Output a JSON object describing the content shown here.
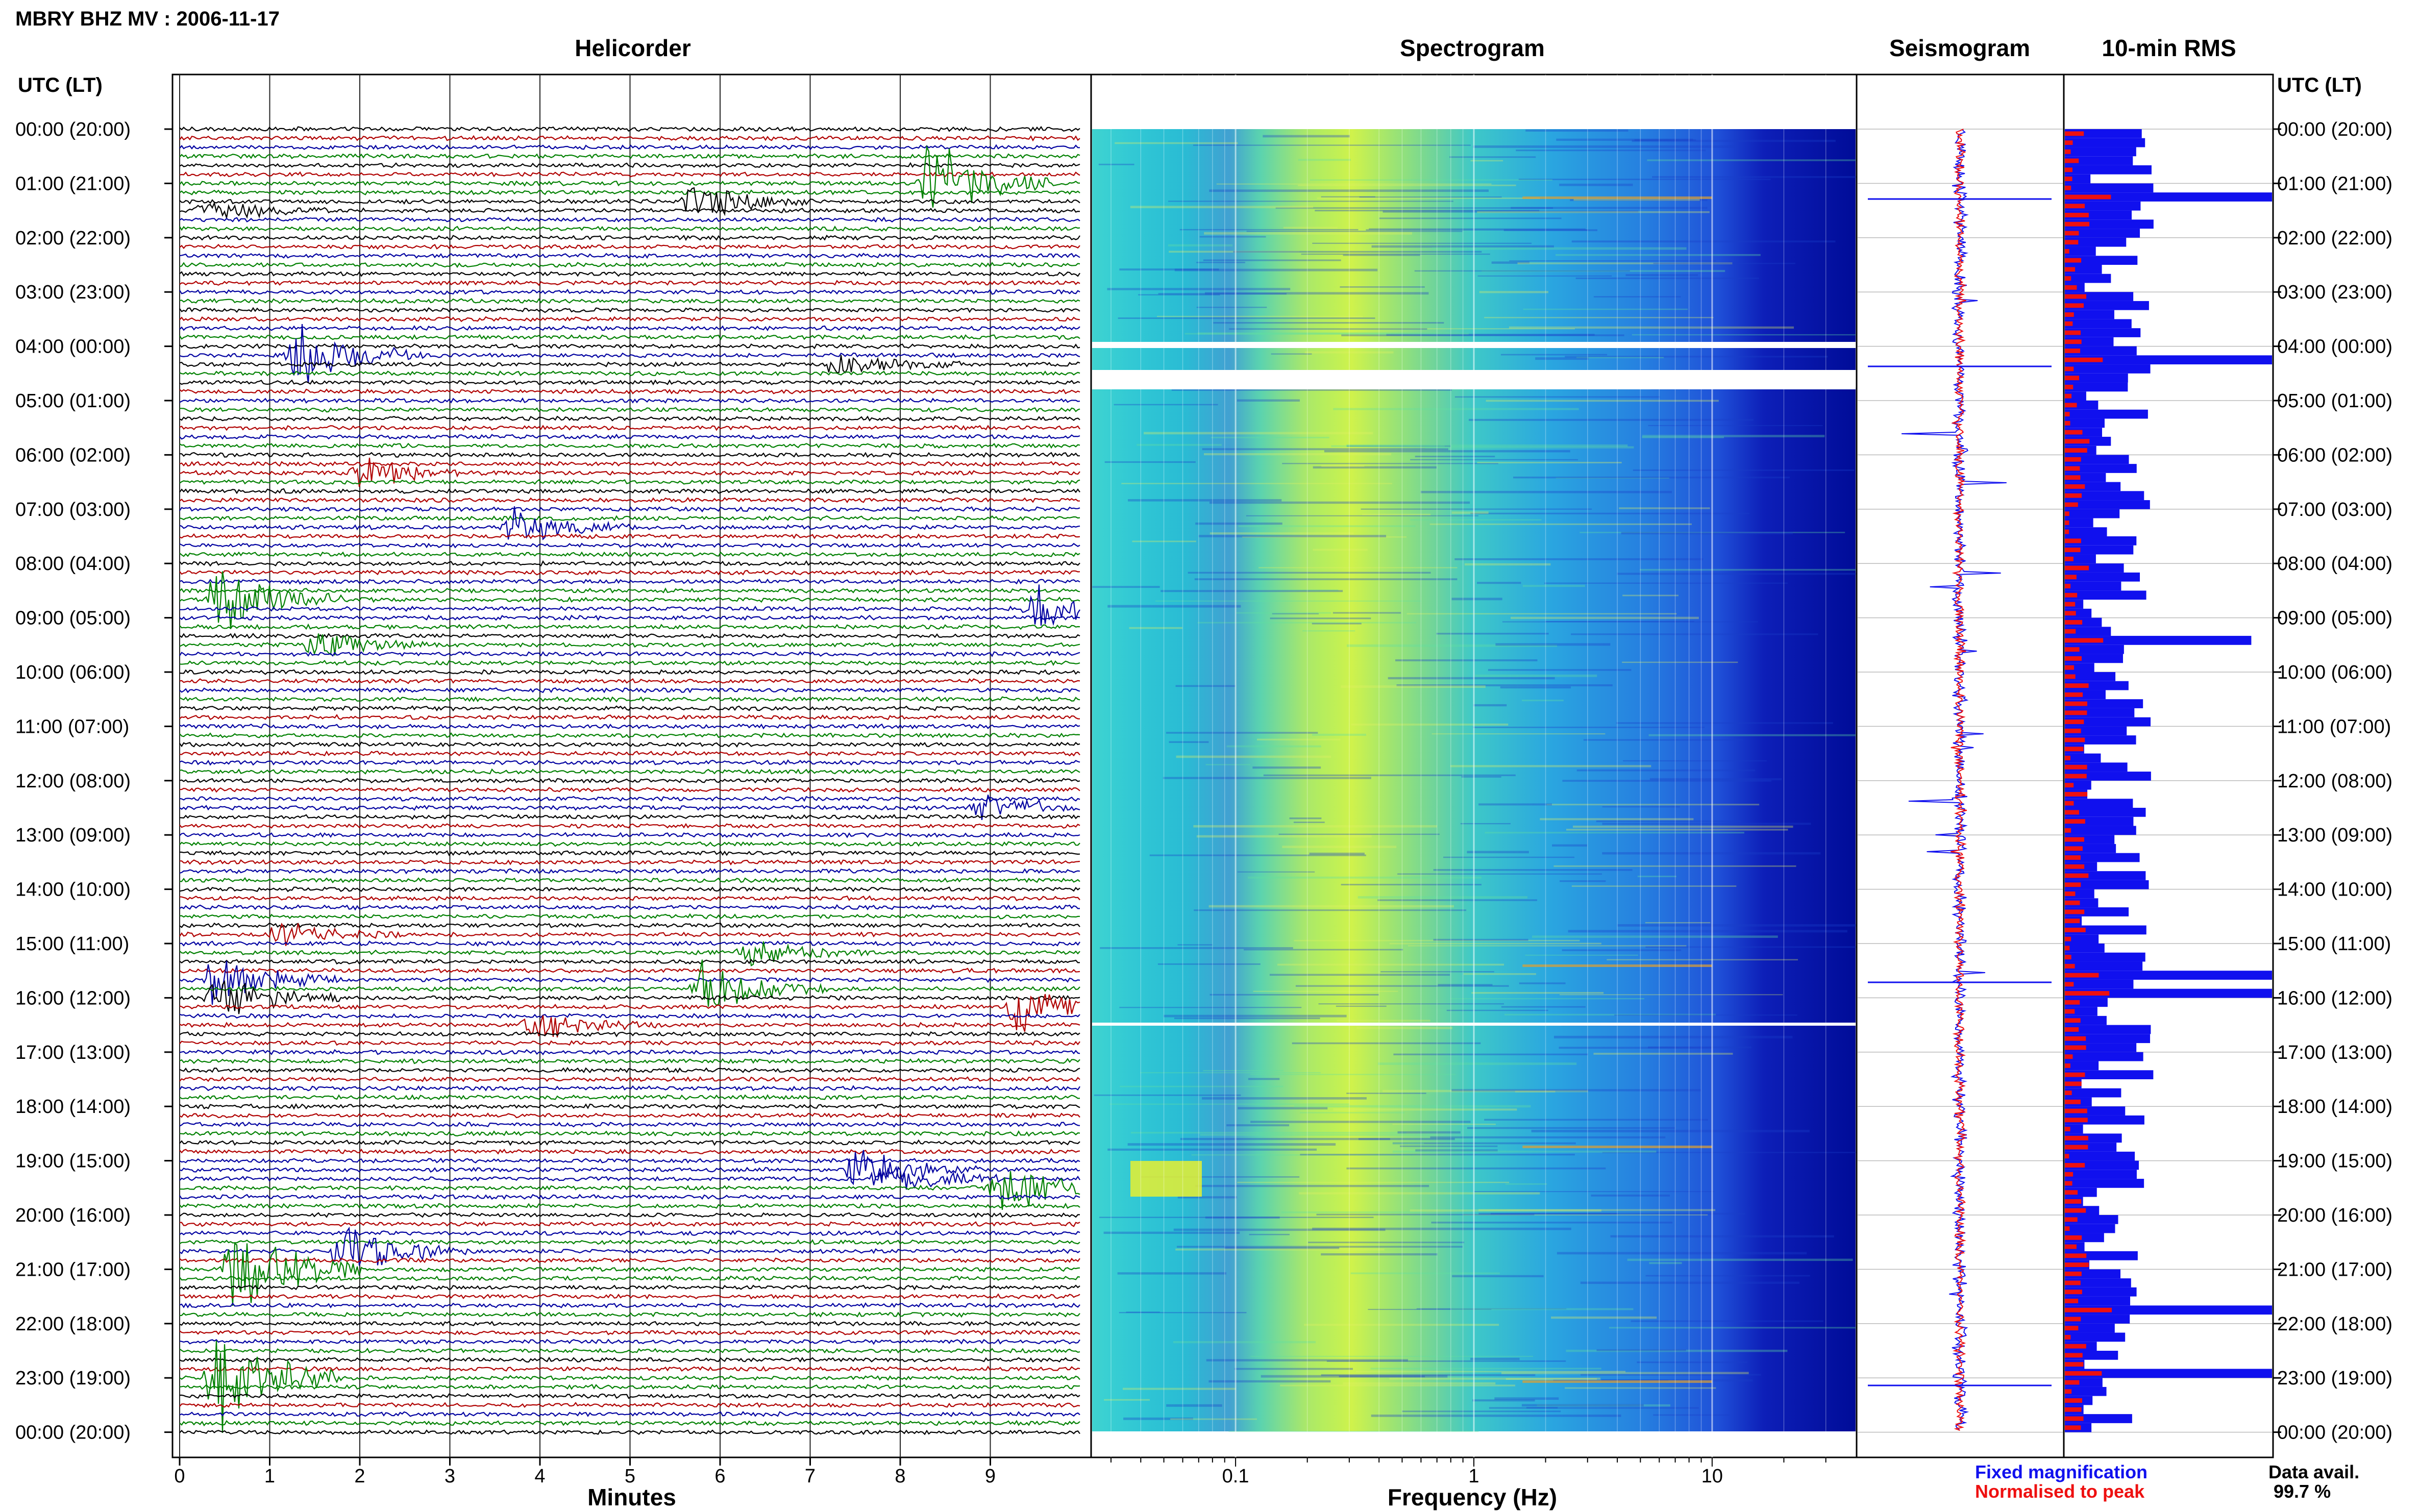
{
  "title": "MBRY BHZ MV : 2006-11-17",
  "panels": {
    "helicorder": "Helicorder",
    "spectrogram": "Spectrogram",
    "seismogram": "Seismogram",
    "rms": "10-min RMS"
  },
  "time_axis_label": "UTC (LT)",
  "hour_labels": [
    "00:00 (20:00)",
    "01:00 (21:00)",
    "02:00 (22:00)",
    "03:00 (23:00)",
    "04:00 (00:00)",
    "05:00 (01:00)",
    "06:00 (02:00)",
    "07:00 (03:00)",
    "08:00 (04:00)",
    "09:00 (05:00)",
    "10:00 (06:00)",
    "11:00 (07:00)",
    "12:00 (08:00)",
    "13:00 (09:00)",
    "14:00 (10:00)",
    "15:00 (11:00)",
    "16:00 (12:00)",
    "17:00 (13:00)",
    "18:00 (14:00)",
    "19:00 (15:00)",
    "20:00 (16:00)",
    "21:00 (17:00)",
    "22:00 (18:00)",
    "23:00 (19:00)",
    "00:00 (20:00)"
  ],
  "minutes_axis": {
    "label": "Minutes",
    "ticks": [
      "0",
      "1",
      "2",
      "3",
      "4",
      "5",
      "6",
      "7",
      "8",
      "9"
    ]
  },
  "frequency_axis": {
    "label": "Frequency (Hz)",
    "ticks": [
      "0.1",
      "1",
      "10"
    ],
    "scale": "log"
  },
  "legend": {
    "fixed": {
      "text": "Fixed magnification",
      "color": "#1010ee"
    },
    "normalised": {
      "text": "Normalised to peak",
      "color": "#ee1010"
    }
  },
  "data_availability": {
    "label": "Data avail.",
    "value": "99.7 %"
  },
  "colors": {
    "trace_cycle": [
      "#000000",
      "#b00000",
      "#0000a0",
      "#008000"
    ]
  },
  "chart_data": {
    "type": "helicorder",
    "trace_lines_per_hour": 6,
    "minutes_per_line": 10,
    "hours": 24,
    "notable_events": [
      {
        "line": 6,
        "minute": 8.3,
        "amp": 5.0,
        "color": "green"
      },
      {
        "line": 8,
        "minute": 5.7,
        "amp": 2.2,
        "color": "black"
      },
      {
        "line": 9,
        "minute": 0.3,
        "amp": 1.2,
        "color": "black"
      },
      {
        "line": 25,
        "minute": 1.3,
        "amp": 3.5,
        "color": "blue"
      },
      {
        "line": 26,
        "minute": 7.3,
        "amp": 1.5,
        "color": "black"
      },
      {
        "line": 38,
        "minute": 2.0,
        "amp": 1.8,
        "color": "red"
      },
      {
        "line": 44,
        "minute": 3.7,
        "amp": 2.0,
        "color": "blue"
      },
      {
        "line": 52,
        "minute": 0.4,
        "amp": 4.5,
        "color": "green"
      },
      {
        "line": 53,
        "minute": 9.5,
        "amp": 3.0,
        "color": "blue"
      },
      {
        "line": 57,
        "minute": 1.5,
        "amp": 1.5,
        "color": "green"
      },
      {
        "line": 75,
        "minute": 8.9,
        "amp": 1.6,
        "color": "blue"
      },
      {
        "line": 89,
        "minute": 1.1,
        "amp": 1.4,
        "color": "red"
      },
      {
        "line": 91,
        "minute": 6.3,
        "amp": 1.5,
        "color": "green"
      },
      {
        "line": 94,
        "minute": 0.4,
        "amp": 3.0,
        "color": "blue"
      },
      {
        "line": 95,
        "minute": 5.8,
        "amp": 3.2,
        "color": "green"
      },
      {
        "line": 96,
        "minute": 0.4,
        "amp": 2.5,
        "color": "black"
      },
      {
        "line": 97,
        "minute": 9.3,
        "amp": 2.5,
        "color": "red"
      },
      {
        "line": 99,
        "minute": 3.9,
        "amp": 1.8,
        "color": "red"
      },
      {
        "line": 115,
        "minute": 7.5,
        "amp": 2.5,
        "color": "blue"
      },
      {
        "line": 116,
        "minute": 7.8,
        "amp": 2.0,
        "color": "blue"
      },
      {
        "line": 117,
        "minute": 9.1,
        "amp": 3.2,
        "color": "green"
      },
      {
        "line": 124,
        "minute": 1.8,
        "amp": 3.5,
        "color": "blue"
      },
      {
        "line": 126,
        "minute": 0.6,
        "amp": 5.5,
        "color": "green"
      },
      {
        "line": 138,
        "minute": 0.4,
        "amp": 7.0,
        "color": "green"
      }
    ]
  }
}
